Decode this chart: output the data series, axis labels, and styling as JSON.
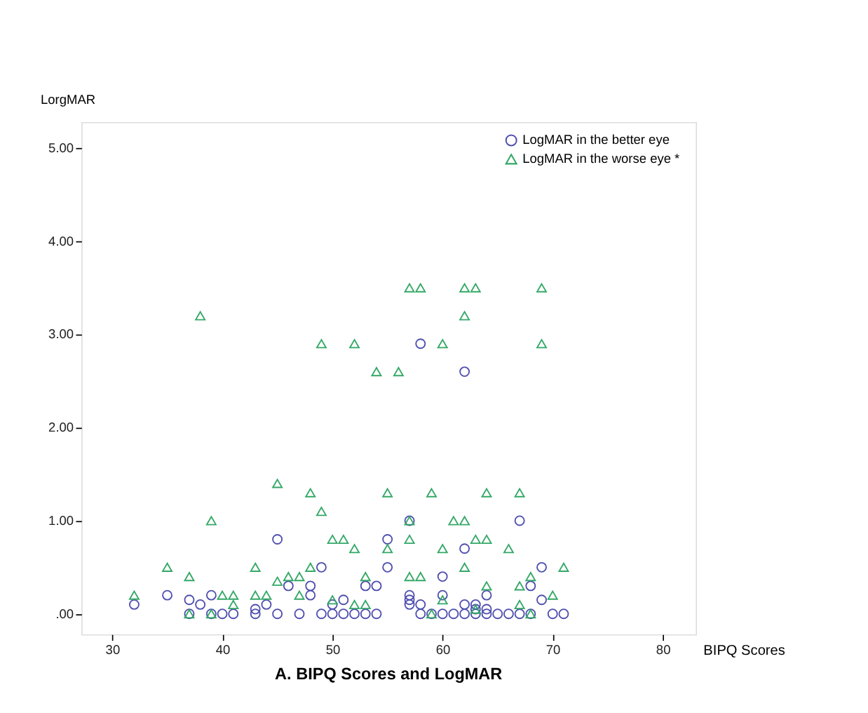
{
  "chart_data": {
    "type": "scatter",
    "title": "A.  BIPQ Scores and LogMAR",
    "xlabel": "BIPQ Scores",
    "ylabel": "LorgMAR",
    "xlim": [
      27.2,
      83
    ],
    "xticks": [
      30,
      40,
      50,
      60,
      70,
      80
    ],
    "ylim": [
      -0.22,
      5.28
    ],
    "yticks": [
      {
        "value": 0,
        "label": ".00"
      },
      {
        "value": 1,
        "label": "1.00"
      },
      {
        "value": 2,
        "label": "2.00"
      },
      {
        "value": 3,
        "label": "3.00"
      },
      {
        "value": 4,
        "label": "4.00"
      },
      {
        "value": 5,
        "label": "5.00"
      }
    ],
    "grid": false,
    "legend": "top right",
    "series": [
      {
        "name": "LogMAR in the better eye",
        "color": "#4f4fb0",
        "marker": "circle",
        "x": [
          58,
          62,
          45,
          49,
          32,
          35,
          37,
          38,
          39,
          43,
          44,
          46,
          48,
          48,
          37,
          39,
          40,
          41,
          43,
          45,
          47,
          49,
          50,
          51,
          57,
          67,
          55,
          62,
          55,
          69,
          60,
          53,
          54,
          68,
          64,
          57,
          60,
          69,
          57,
          51,
          57,
          58,
          62,
          63,
          50,
          63,
          64,
          52,
          53,
          54,
          58,
          59,
          60,
          61,
          62,
          63,
          64,
          65,
          66,
          67,
          68,
          70,
          71
        ],
        "values": [
          2.9,
          2.6,
          0.8,
          0.5,
          0.1,
          0.2,
          0.15,
          0.1,
          0.2,
          0.05,
          0.1,
          0.3,
          0.3,
          0.2,
          0,
          0,
          0,
          0,
          0,
          0,
          0,
          0,
          0,
          0,
          1.0,
          1.0,
          0.8,
          0.7,
          0.5,
          0.5,
          0.4,
          0.3,
          0.3,
          0.3,
          0.2,
          0.2,
          0.2,
          0.15,
          0.15,
          0.15,
          0.1,
          0.1,
          0.1,
          0.1,
          0.1,
          0.05,
          0.05,
          0,
          0,
          0,
          0,
          0,
          0,
          0,
          0,
          0,
          0,
          0,
          0,
          0,
          0,
          0,
          0
        ]
      },
      {
        "name": "LogMAR in the worse eye  *",
        "color": "#33a866",
        "marker": "triangle",
        "x": [
          38,
          49,
          52,
          54,
          56,
          57,
          58,
          62,
          63,
          69,
          62,
          60,
          69,
          45,
          48,
          49,
          39,
          35,
          37,
          43,
          48,
          45,
          46,
          47,
          41,
          43,
          44,
          47,
          40,
          41,
          32,
          37,
          39,
          55,
          59,
          64,
          67,
          57,
          61,
          62,
          50,
          51,
          57,
          63,
          64,
          52,
          55,
          60,
          66,
          62,
          71,
          53,
          57,
          58,
          68,
          64,
          67,
          70,
          60,
          50,
          52,
          53,
          67,
          63,
          59,
          68
        ],
        "values": [
          3.2,
          2.9,
          2.9,
          2.6,
          2.6,
          3.5,
          3.5,
          3.5,
          3.5,
          3.5,
          3.2,
          2.9,
          2.9,
          1.4,
          1.3,
          1.1,
          1.0,
          0.5,
          0.4,
          0.5,
          0.5,
          0.35,
          0.4,
          0.4,
          0.2,
          0.2,
          0.2,
          0.2,
          0.2,
          0.1,
          0.2,
          0,
          0,
          1.3,
          1.3,
          1.3,
          1.3,
          1.0,
          1.0,
          1.0,
          0.8,
          0.8,
          0.8,
          0.8,
          0.8,
          0.7,
          0.7,
          0.7,
          0.7,
          0.5,
          0.5,
          0.4,
          0.4,
          0.4,
          0.4,
          0.3,
          0.3,
          0.2,
          0.15,
          0.15,
          0.1,
          0.1,
          0.1,
          0.05,
          0,
          0
        ]
      }
    ]
  }
}
